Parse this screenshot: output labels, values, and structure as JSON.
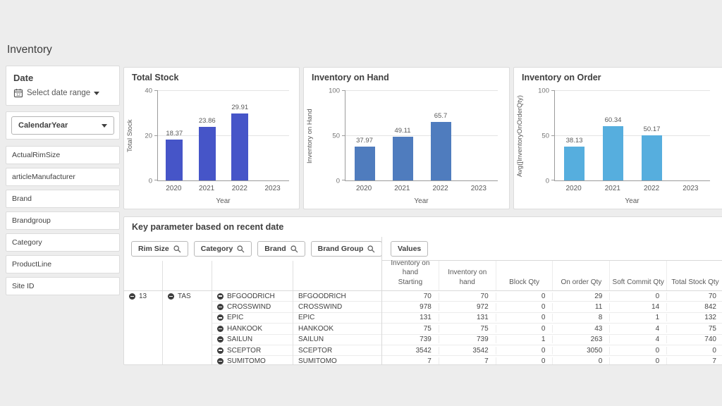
{
  "page": {
    "title": "Inventory"
  },
  "colors": {
    "background": "#ededed",
    "total_stock_bar": "#4655c8",
    "inventory_on_hand_bar": "#4f7cbe",
    "inventory_on_order_bar": "#56aede"
  },
  "sidebar": {
    "date_card": {
      "title": "Date",
      "control": "Select date range",
      "icon": "calendar-icon"
    },
    "dimension_dropdown": {
      "value": "CalendarYear"
    },
    "filters": [
      {
        "label": "ActualRimSize"
      },
      {
        "label": "articleManufacturer"
      },
      {
        "label": "Brand"
      },
      {
        "label": "Brandgroup"
      },
      {
        "label": "Category"
      },
      {
        "label": "ProductLine"
      },
      {
        "label": "Site ID"
      }
    ]
  },
  "chart_data": [
    {
      "type": "bar",
      "title": "Total Stock",
      "categories": [
        "2020",
        "2021",
        "2022",
        "2023"
      ],
      "values": [
        18.37,
        23.86,
        29.91,
        null
      ],
      "data_labels": [
        "18.37",
        "23.86",
        "29.91",
        ""
      ],
      "xlabel": "Year",
      "ylabel": "Total Stock",
      "ylim": [
        0,
        40
      ],
      "yticks": [
        0,
        20,
        40
      ],
      "bar_color": "#4655c8",
      "grid": true,
      "legend": "none"
    },
    {
      "type": "bar",
      "title": "Inventory on Hand",
      "categories": [
        "2020",
        "2021",
        "2022",
        "2023"
      ],
      "values": [
        37.97,
        49.11,
        65.7,
        null
      ],
      "data_labels": [
        "37.97",
        "49.11",
        "65.7",
        ""
      ],
      "xlabel": "Year",
      "ylabel": "Inventory on Hand",
      "ylim": [
        0,
        100
      ],
      "yticks": [
        0,
        50,
        100
      ],
      "bar_color": "#4f7cbe",
      "grid": true,
      "legend": "none"
    },
    {
      "type": "bar",
      "title": "Inventory on Order",
      "categories": [
        "2020",
        "2021",
        "2022",
        "2023"
      ],
      "values": [
        38.13,
        60.34,
        50.17,
        null
      ],
      "data_labels": [
        "38.13",
        "60.34",
        "50.17",
        ""
      ],
      "xlabel": "Year",
      "ylabel": "Avg([InventoryOnOrderQty)",
      "ylim": [
        0,
        100
      ],
      "yticks": [
        0,
        50,
        100
      ],
      "bar_color": "#56aede",
      "grid": true,
      "legend": "none"
    }
  ],
  "pivot": {
    "title": "Key parameter based on recent date",
    "dimension_chips": [
      "Rim Size",
      "Category",
      "Brand",
      "Brand Group"
    ],
    "values_chip": "Values",
    "measure_headers": [
      "Inventory on hand\nStarting",
      "Inventory on hand",
      "Block Qty",
      "On order Qty",
      "Soft Commit Qty",
      "Total Stock Qty"
    ],
    "rim_size": "13",
    "category": "TAS",
    "rows": [
      {
        "brand": "BFGOODRICH",
        "brand_group": "BFGOODRICH",
        "values": [
          "70",
          "70",
          "0",
          "29",
          "0",
          "70"
        ]
      },
      {
        "brand": "CROSSWIND",
        "brand_group": "CROSSWIND",
        "values": [
          "978",
          "972",
          "0",
          "11",
          "14",
          "842"
        ]
      },
      {
        "brand": "EPIC",
        "brand_group": "EPIC",
        "values": [
          "131",
          "131",
          "0",
          "8",
          "1",
          "132"
        ]
      },
      {
        "brand": "HANKOOK",
        "brand_group": "HANKOOK",
        "values": [
          "75",
          "75",
          "0",
          "43",
          "4",
          "75"
        ]
      },
      {
        "brand": "SAILUN",
        "brand_group": "SAILUN",
        "values": [
          "739",
          "739",
          "1",
          "263",
          "4",
          "740"
        ]
      },
      {
        "brand": "SCEPTOR",
        "brand_group": "SCEPTOR",
        "values": [
          "3542",
          "3542",
          "0",
          "3050",
          "0",
          "0"
        ]
      },
      {
        "brand": "SUMITOMO",
        "brand_group": "SUMITOMO",
        "values": [
          "7",
          "7",
          "0",
          "0",
          "0",
          "7"
        ]
      }
    ]
  }
}
